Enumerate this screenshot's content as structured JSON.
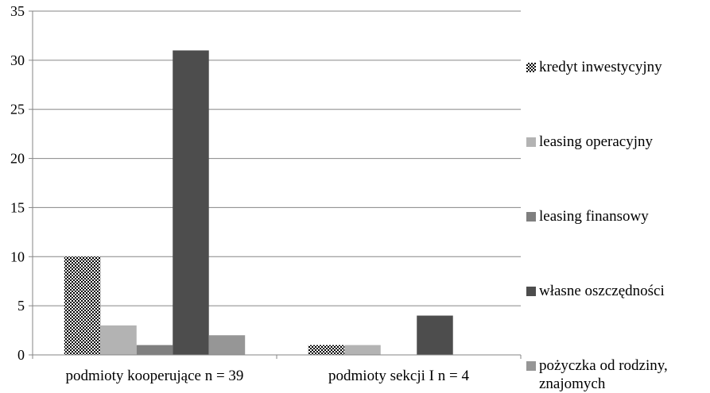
{
  "chart_data": {
    "type": "bar",
    "categories": [
      "podmioty kooperujące n = 39",
      "podmioty sekcji I n = 4"
    ],
    "series": [
      {
        "name": "kredyt inwestycyjny",
        "values": [
          10,
          1
        ],
        "color": "#000000",
        "pattern": "checker"
      },
      {
        "name": "leasing operacyjny",
        "values": [
          3,
          1
        ],
        "color": "#b3b3b3"
      },
      {
        "name": "leasing finansowy",
        "values": [
          1,
          0
        ],
        "color": "#7f7f7f"
      },
      {
        "name": "własne oszczędności",
        "values": [
          31,
          4
        ],
        "color": "#4d4d4d"
      },
      {
        "name": "pożyczka od rodziny,\nznajomych",
        "values": [
          2,
          0
        ],
        "color": "#969696"
      }
    ],
    "ylim": [
      0,
      35
    ],
    "yticks": [
      0,
      5,
      10,
      15,
      20,
      25,
      30,
      35
    ],
    "grid": true,
    "legend_position": "right",
    "title": "",
    "xlabel": "",
    "ylabel": ""
  }
}
